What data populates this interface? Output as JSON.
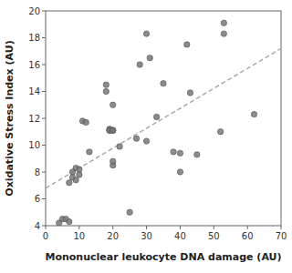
{
  "chart_data": {
    "type": "scatter",
    "x_label": "Mononuclear leukocyte DNA damage (AU)",
    "y_label": "Oxidative Stress Index (AU)",
    "series": [
      {
        "type": "scatter",
        "marker": "circle",
        "color": "#787878",
        "x": [
          4,
          5,
          6,
          7,
          7,
          8,
          8,
          9,
          9,
          10,
          10,
          11,
          12,
          13,
          18,
          18,
          19,
          19,
          19,
          20,
          20,
          20,
          20,
          20,
          20,
          22,
          25,
          27,
          28,
          30,
          30,
          31,
          33,
          35,
          38,
          40,
          40,
          42,
          43,
          45,
          52,
          53,
          53,
          62
        ],
        "values": [
          4.2,
          4.5,
          4.5,
          7.2,
          4.3,
          8.0,
          7.6,
          8.3,
          7.4,
          7.8,
          8.2,
          11.8,
          11.7,
          9.5,
          14.5,
          14.0,
          11.1,
          11.2,
          11.1,
          13.0,
          8.5,
          11.1,
          11.1,
          11.1,
          8.8,
          9.9,
          5.0,
          10.5,
          16.0,
          18.3,
          10.3,
          16.5,
          12.1,
          14.6,
          9.5,
          9.4,
          8.0,
          17.5,
          13.9,
          9.3,
          11.0,
          19.1,
          18.3,
          12.3
        ]
      },
      {
        "type": "line",
        "line_style": "dashed",
        "color": "#aaaaaa",
        "x": [
          0,
          70
        ],
        "values": [
          6.8,
          17.2
        ]
      }
    ],
    "xlim": [
      0,
      70
    ],
    "ylim": [
      4,
      20
    ],
    "xticks": [
      0,
      10,
      20,
      30,
      40,
      50,
      60,
      70
    ],
    "yticks": [
      4,
      6,
      8,
      10,
      12,
      14,
      16,
      18,
      20
    ],
    "grid": false
  }
}
